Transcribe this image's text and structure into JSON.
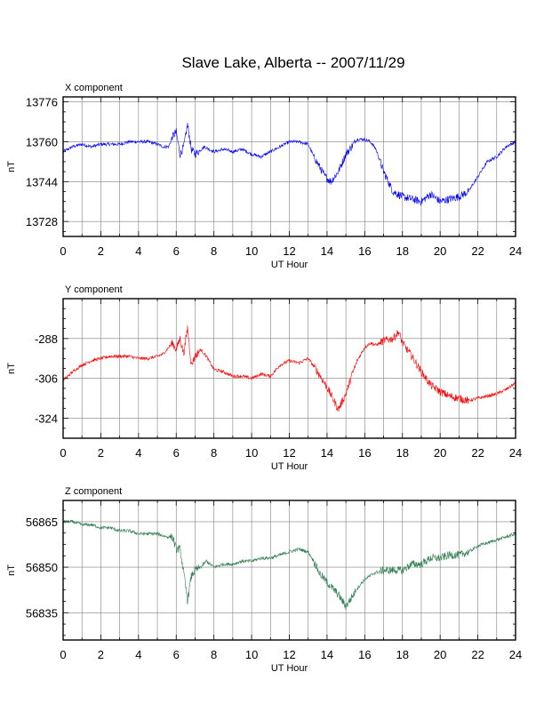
{
  "title": "Slave Lake, Alberta -- 2007/11/29",
  "chart_data": [
    {
      "type": "line",
      "panel_title": "X component",
      "xlabel": "UT Hour",
      "ylabel": "nT",
      "xlim": [
        0,
        24
      ],
      "ylim": [
        13722,
        13778
      ],
      "xticks": [
        0,
        2,
        4,
        6,
        8,
        10,
        12,
        14,
        16,
        18,
        20,
        22,
        24
      ],
      "yticks": [
        13728,
        13744,
        13760,
        13776
      ],
      "grid": true,
      "series": [
        {
          "color": "#0000ff",
          "x": [
            0,
            0.5,
            1,
            1.5,
            2,
            2.5,
            3,
            3.5,
            4,
            4.5,
            5,
            5.3,
            5.6,
            5.8,
            6.0,
            6.2,
            6.4,
            6.6,
            6.8,
            7.0,
            7.5,
            8,
            8.5,
            9,
            9.5,
            10,
            10.5,
            11,
            11.5,
            12,
            12.5,
            13,
            13.3,
            13.6,
            13.9,
            14.2,
            14.6,
            15,
            15.3,
            15.6,
            16,
            16.3,
            16.6,
            17,
            17.5,
            18,
            18.5,
            19,
            19.5,
            20,
            20.5,
            21,
            21.5,
            22,
            22.5,
            23,
            23.5,
            24
          ],
          "y": [
            13756,
            13758,
            13759,
            13758,
            13759,
            13759,
            13759,
            13760,
            13760,
            13760,
            13759,
            13758,
            13758,
            13762,
            13764,
            13755,
            13758,
            13767,
            13757,
            13755,
            13758,
            13756,
            13757,
            13756,
            13757,
            13755,
            13754,
            13756,
            13758,
            13760,
            13760,
            13759,
            13754,
            13750,
            13746,
            13744,
            13748,
            13755,
            13758,
            13761,
            13761,
            13760,
            13757,
            13748,
            13740,
            13738,
            13737,
            13736,
            13739,
            13736,
            13737,
            13738,
            13740,
            13746,
            13752,
            13754,
            13758,
            13760
          ]
        }
      ]
    },
    {
      "type": "line",
      "panel_title": "Y component",
      "xlabel": "UT Hour",
      "ylabel": "nT",
      "xlim": [
        0,
        24
      ],
      "ylim": [
        -333,
        -270
      ],
      "xticks": [
        0,
        2,
        4,
        6,
        8,
        10,
        12,
        14,
        16,
        18,
        20,
        22,
        24
      ],
      "yticks": [
        -288,
        -306,
        -324
      ],
      "grid": true,
      "series": [
        {
          "color": "#ff0000",
          "x": [
            0,
            0.5,
            1,
            1.5,
            2,
            2.5,
            3,
            3.5,
            4,
            4.5,
            5,
            5.3,
            5.6,
            5.8,
            6.0,
            6.2,
            6.4,
            6.6,
            6.8,
            7.0,
            7.3,
            7.6,
            8,
            8.5,
            9,
            9.5,
            10,
            10.5,
            11,
            11.5,
            12,
            12.5,
            13,
            13.5,
            14,
            14.3,
            14.6,
            15,
            15.3,
            15.6,
            16,
            16.3,
            16.6,
            17,
            17.5,
            17.8,
            18,
            18.5,
            19,
            19.5,
            20,
            20.5,
            21,
            21.5,
            22,
            22.5,
            23,
            23.5,
            24
          ],
          "y": [
            -307,
            -303,
            -300,
            -298,
            -297,
            -296,
            -296,
            -296,
            -297,
            -297,
            -296,
            -295,
            -292,
            -290,
            -293,
            -288,
            -295,
            -283,
            -300,
            -296,
            -293,
            -296,
            -302,
            -303,
            -305,
            -305,
            -306,
            -304,
            -305,
            -300,
            -298,
            -299,
            -297,
            -303,
            -310,
            -315,
            -320,
            -313,
            -305,
            -298,
            -292,
            -290,
            -291,
            -289,
            -288,
            -285,
            -290,
            -296,
            -303,
            -309,
            -312,
            -314,
            -315,
            -316,
            -315,
            -314,
            -313,
            -311,
            -308
          ]
        }
      ]
    },
    {
      "type": "line",
      "panel_title": "Z component",
      "xlabel": "UT Hour",
      "ylabel": "nT",
      "xlim": [
        0,
        24
      ],
      "ylim": [
        56826,
        56872
      ],
      "xticks": [
        0,
        2,
        4,
        6,
        8,
        10,
        12,
        14,
        16,
        18,
        20,
        22,
        24
      ],
      "yticks": [
        56865,
        56850,
        56835
      ],
      "grid": true,
      "series": [
        {
          "color": "#2e7d4f",
          "x": [
            0,
            0.5,
            1,
            1.5,
            2,
            2.5,
            3,
            3.5,
            4,
            4.5,
            5,
            5.5,
            5.8,
            6.0,
            6.2,
            6.4,
            6.6,
            6.8,
            7.0,
            7.3,
            7.6,
            8,
            8.5,
            9,
            9.5,
            10,
            10.5,
            11,
            11.5,
            12,
            12.5,
            13,
            13.3,
            13.6,
            14,
            14.3,
            14.6,
            15,
            15.3,
            15.6,
            16,
            16.5,
            17,
            17.5,
            18,
            18.5,
            19,
            19.5,
            20,
            20.5,
            21,
            21.5,
            22,
            22.5,
            23,
            23.5,
            24
          ],
          "y": [
            56865,
            56865,
            56864,
            56864,
            56863,
            56863,
            56862,
            56862,
            56861,
            56861,
            56861,
            56860,
            56860,
            56856,
            56856,
            56848,
            56839,
            56847,
            56849,
            56850,
            56852,
            56850,
            56851,
            56851,
            56852,
            56852,
            56853,
            56853,
            56854,
            56855,
            56856,
            56855,
            56852,
            56848,
            56845,
            56843,
            56841,
            56837,
            56840,
            56843,
            56846,
            56848,
            56849,
            56849,
            56849,
            56851,
            56851,
            56853,
            56853,
            56854,
            56854,
            56855,
            56857,
            56858,
            56859,
            56860,
            56861
          ]
        }
      ]
    }
  ]
}
